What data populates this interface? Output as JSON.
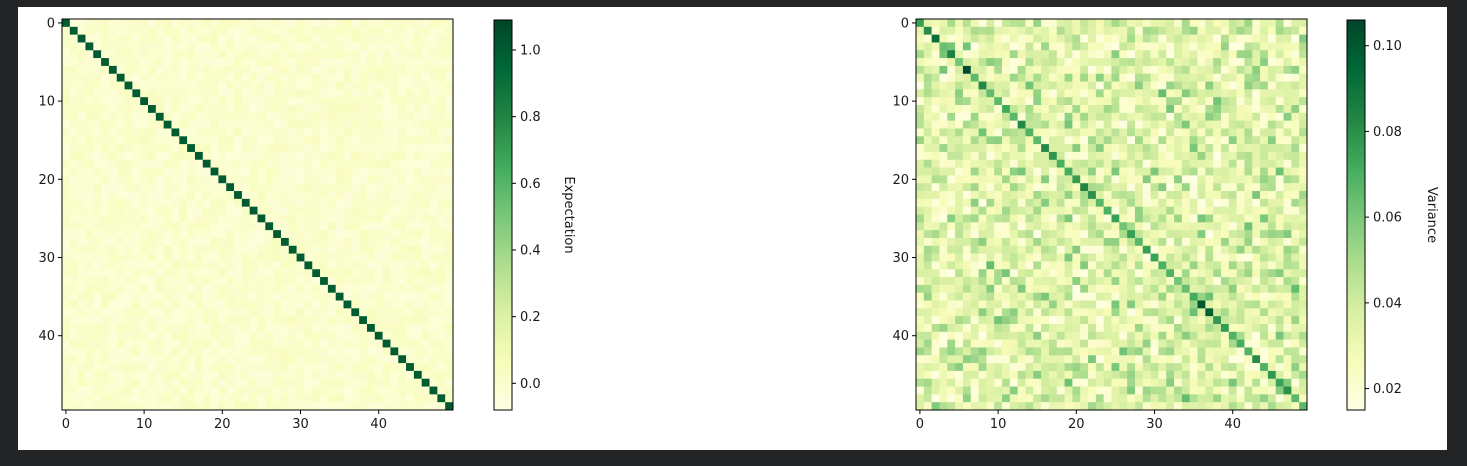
{
  "chart_data": [
    {
      "type": "heatmap",
      "title": "",
      "xlabel": "",
      "ylabel": "",
      "rows": 50,
      "cols": 50,
      "x_ticks": [
        0,
        10,
        20,
        30,
        40
      ],
      "y_ticks": [
        0,
        10,
        20,
        30,
        40
      ],
      "x_tick_labels": [
        "0",
        "10",
        "20",
        "30",
        "40"
      ],
      "y_tick_labels": [
        "0",
        "10",
        "20",
        "30",
        "40"
      ],
      "colormap": "YlGn",
      "vmin": -0.08,
      "vmax": 1.09,
      "diagonal_value": 1.0,
      "offdiagonal_mean": 0.0,
      "offdiagonal_range": [
        -0.05,
        0.06
      ],
      "colorbar": {
        "label": "Expectation",
        "ticks": [
          0.0,
          0.2,
          0.4,
          0.6,
          0.8,
          1.0
        ],
        "tick_labels": [
          "0.0",
          "0.2",
          "0.4",
          "0.6",
          "0.8",
          "1.0"
        ]
      }
    },
    {
      "type": "heatmap",
      "title": "",
      "xlabel": "",
      "ylabel": "",
      "rows": 50,
      "cols": 50,
      "x_ticks": [
        0,
        10,
        20,
        30,
        40
      ],
      "y_ticks": [
        0,
        10,
        20,
        30,
        40
      ],
      "x_tick_labels": [
        "0",
        "10",
        "20",
        "30",
        "40"
      ],
      "y_tick_labels": [
        "0",
        "10",
        "20",
        "30",
        "40"
      ],
      "colormap": "YlGn",
      "vmin": 0.015,
      "vmax": 0.106,
      "diagonal_range": [
        0.06,
        0.106
      ],
      "offdiagonal_range": [
        0.015,
        0.065
      ],
      "highlighted_cells": [
        {
          "row": 6,
          "col": 6,
          "value": 0.104
        },
        {
          "row": 36,
          "col": 36,
          "value": 0.1
        },
        {
          "row": 37,
          "col": 37,
          "value": 0.098
        },
        {
          "row": 2,
          "col": 2,
          "value": 0.092
        },
        {
          "row": 4,
          "col": 4,
          "value": 0.085
        },
        {
          "row": 21,
          "col": 21,
          "value": 0.084
        },
        {
          "row": 16,
          "col": 16,
          "value": 0.082
        },
        {
          "row": 47,
          "col": 47,
          "value": 0.08
        }
      ],
      "colorbar": {
        "label": "Variance",
        "ticks": [
          0.02,
          0.04,
          0.06,
          0.08,
          0.1
        ],
        "tick_labels": [
          "0.02",
          "0.04",
          "0.06",
          "0.08",
          "0.10"
        ]
      }
    }
  ]
}
